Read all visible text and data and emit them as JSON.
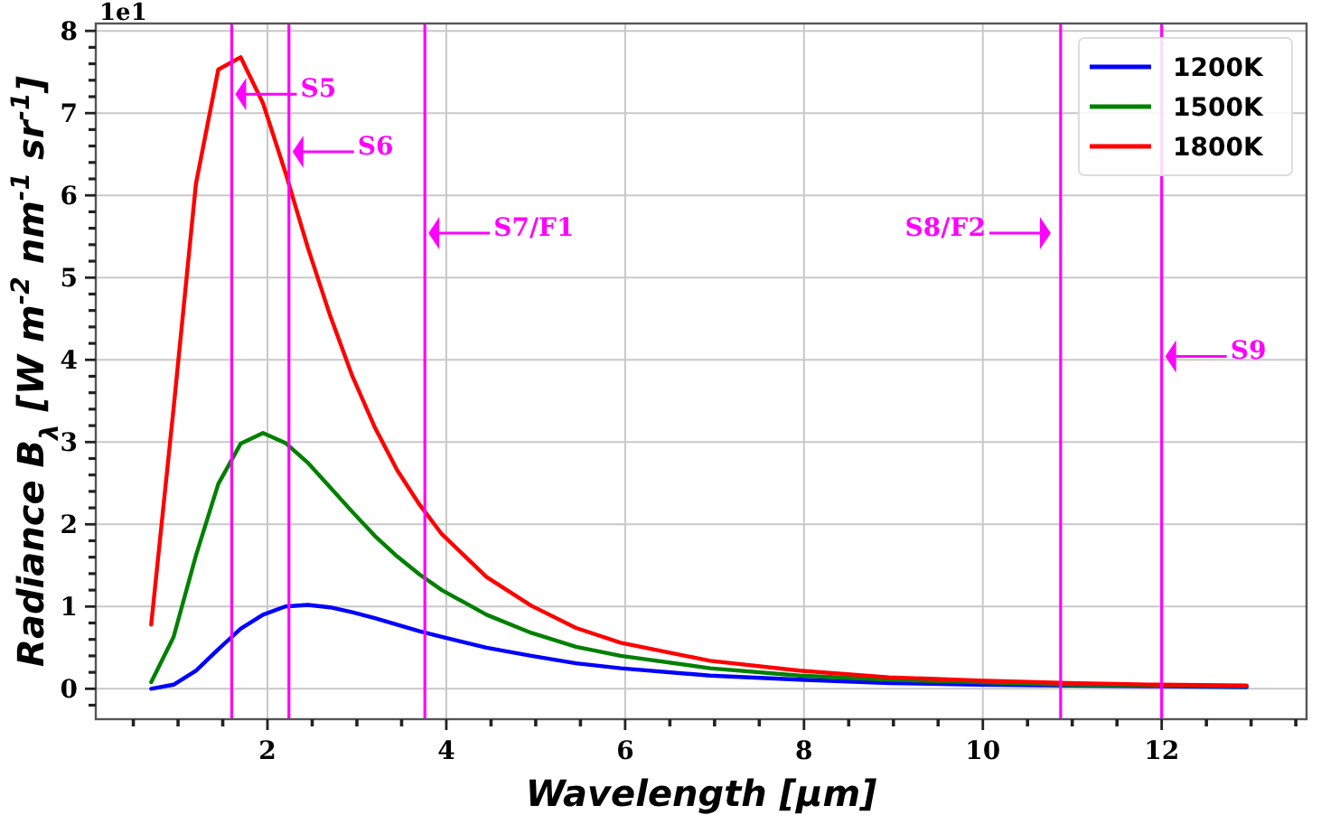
{
  "chart_data": {
    "type": "line",
    "xlabel": "Wavelength [μm]",
    "ylabel": "Radiance B$_{λ}$ [W m$^{-2}$ nm$^{-1}$ sr$^{-1}$]",
    "x": [
      0.7,
      0.95,
      1.2,
      1.45,
      1.7,
      1.95,
      2.2,
      2.45,
      2.7,
      2.95,
      3.2,
      3.45,
      3.7,
      3.95,
      4.45,
      4.95,
      5.45,
      5.95,
      6.95,
      7.95,
      8.95,
      9.95,
      10.95,
      11.95,
      12.95
    ],
    "series": [
      {
        "name": "1200K",
        "color": "#0000ff",
        "values": [
          0.0,
          0.05,
          0.22,
          0.48,
          0.73,
          0.9,
          1.0,
          1.02,
          0.99,
          0.93,
          0.86,
          0.78,
          0.7,
          0.63,
          0.5,
          0.4,
          0.31,
          0.25,
          0.16,
          0.11,
          0.07,
          0.05,
          0.04,
          0.03,
          0.02
        ]
      },
      {
        "name": "1500K",
        "color": "#008000",
        "values": [
          0.08,
          0.63,
          1.62,
          2.49,
          2.98,
          3.11,
          2.99,
          2.75,
          2.45,
          2.15,
          1.86,
          1.61,
          1.39,
          1.2,
          0.9,
          0.68,
          0.51,
          0.4,
          0.25,
          0.16,
          0.11,
          0.08,
          0.05,
          0.04,
          0.03
        ]
      },
      {
        "name": "1800K",
        "color": "#ff0000",
        "values": [
          0.78,
          3.41,
          6.14,
          7.53,
          7.68,
          7.12,
          6.28,
          5.37,
          4.54,
          3.8,
          3.18,
          2.66,
          2.24,
          1.88,
          1.36,
          1.01,
          0.74,
          0.56,
          0.34,
          0.22,
          0.14,
          0.1,
          0.07,
          0.05,
          0.04
        ]
      }
    ],
    "xlim": [
      0.08,
      13.62
    ],
    "ylim": [
      -0.37,
      8.09
    ],
    "xticks": [
      {
        "value": 0.5,
        "label": null
      },
      {
        "value": 1,
        "label": null
      },
      {
        "value": 1.5,
        "label": null
      },
      2,
      {
        "value": 2.5,
        "label": null
      },
      {
        "value": 3,
        "label": null
      },
      {
        "value": 3.5,
        "label": null
      },
      4,
      {
        "value": 4.5,
        "label": null
      },
      {
        "value": 5,
        "label": null
      },
      {
        "value": 5.5,
        "label": null
      },
      6,
      {
        "value": 6.5,
        "label": null
      },
      {
        "value": 7,
        "label": null
      },
      {
        "value": 7.5,
        "label": null
      },
      8,
      {
        "value": 8.5,
        "label": null
      },
      {
        "value": 9,
        "label": null
      },
      {
        "value": 9.5,
        "label": null
      },
      10,
      {
        "value": 10.5,
        "label": null
      },
      {
        "value": 11,
        "label": null
      },
      {
        "value": 11.5,
        "label": null
      },
      12,
      {
        "value": 12.5,
        "label": null
      },
      {
        "value": 13,
        "label": null
      },
      {
        "value": 13.5,
        "label": null
      }
    ],
    "yticks": [
      {
        "value": -0.2,
        "label": null
      },
      0,
      {
        "value": 0.2,
        "label": null
      },
      {
        "value": 0.4,
        "label": null
      },
      {
        "value": 0.6,
        "label": null
      },
      {
        "value": 0.8,
        "label": null
      },
      1,
      {
        "value": 1.2,
        "label": null
      },
      {
        "value": 1.4,
        "label": null
      },
      {
        "value": 1.6,
        "label": null
      },
      {
        "value": 1.8,
        "label": null
      },
      2,
      {
        "value": 2.2,
        "label": null
      },
      {
        "value": 2.4,
        "label": null
      },
      {
        "value": 2.6,
        "label": null
      },
      {
        "value": 2.8,
        "label": null
      },
      3,
      {
        "value": 3.2,
        "label": null
      },
      {
        "value": 3.4,
        "label": null
      },
      {
        "value": 3.6,
        "label": null
      },
      {
        "value": 3.8,
        "label": null
      },
      4,
      {
        "value": 4.2,
        "label": null
      },
      {
        "value": 4.4,
        "label": null
      },
      {
        "value": 4.6,
        "label": null
      },
      {
        "value": 4.8,
        "label": null
      },
      5,
      {
        "value": 5.2,
        "label": null
      },
      {
        "value": 5.4,
        "label": null
      },
      {
        "value": 5.6,
        "label": null
      },
      {
        "value": 5.8,
        "label": null
      },
      6,
      {
        "value": 6.2,
        "label": null
      },
      {
        "value": 6.4,
        "label": null
      },
      {
        "value": 6.6,
        "label": null
      },
      {
        "value": 6.8,
        "label": null
      },
      7,
      {
        "value": 7.2,
        "label": null
      },
      {
        "value": 7.4,
        "label": null
      },
      {
        "value": 7.6,
        "label": null
      },
      {
        "value": 7.8,
        "label": null
      },
      8
    ],
    "grid": true,
    "legend": "top right",
    "marker": "none",
    "line_style": "solid",
    "ref_lines": [
      {
        "axis": "x",
        "value": 1.6,
        "color": "#ff00ff"
      },
      {
        "axis": "x",
        "value": 2.24,
        "color": "#ff00ff"
      },
      {
        "axis": "x",
        "value": 3.76,
        "color": "#ff00ff"
      },
      {
        "axis": "x",
        "value": 10.87,
        "color": "#ff00ff"
      },
      {
        "axis": "x",
        "value": 12.0,
        "color": "#ff00ff"
      }
    ],
    "annotations": [
      "1e1",
      {
        "text": "S5",
        "x": 1.6,
        "y": 7.23
      },
      {
        "text": "S6",
        "x": 2.24,
        "y": 6.53
      },
      {
        "text": "S7/F1",
        "x": 3.76,
        "y": 5.54
      },
      {
        "text": "S8/F2",
        "x": 10.8,
        "y": 5.54
      },
      {
        "text": "S9",
        "x": 12.0,
        "y": 4.04
      }
    ]
  }
}
